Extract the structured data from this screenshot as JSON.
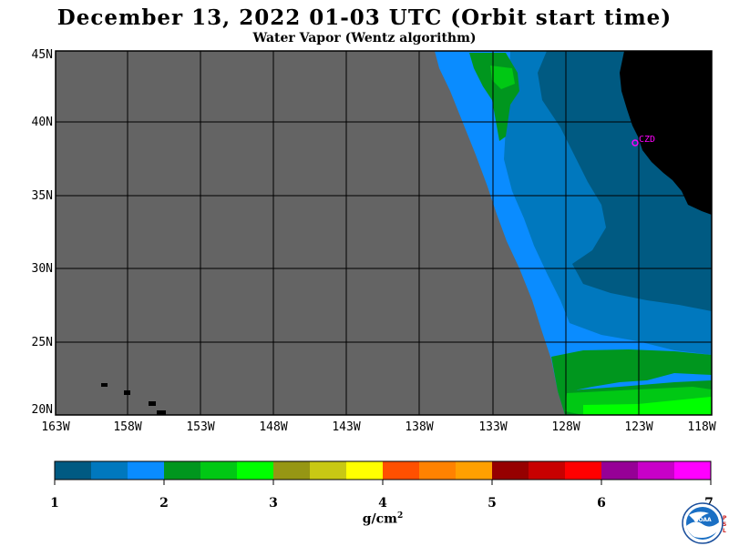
{
  "title": "December 13, 2022  01-03 UTC  (Orbit start time)",
  "subtitle": "Water Vapor (Wentz algorithm)",
  "map": {
    "lat_labels": [
      "45N",
      "40N",
      "35N",
      "30N",
      "25N",
      "20N"
    ],
    "lon_labels": [
      "163W",
      "158W",
      "153W",
      "148W",
      "143W",
      "138W",
      "133W",
      "128W",
      "123W",
      "118W"
    ],
    "station_label": "CZD",
    "colors": {
      "no_data": "#646464",
      "land": "#000000",
      "station": "#ff00ff",
      "grid": "#000000"
    }
  },
  "colorbar": {
    "tick_labels": [
      "1",
      "2",
      "3",
      "4",
      "5",
      "6",
      "7"
    ],
    "unit": "g/cm",
    "unit_exp": "2",
    "colors": [
      "#005a82",
      "#0078be",
      "#0a8cff",
      "#00961e",
      "#00c814",
      "#00ff00",
      "#969614",
      "#c8c814",
      "#ffff00",
      "#ff5000",
      "#ff8200",
      "#ffa000",
      "#960000",
      "#c80000",
      "#ff0000",
      "#960096",
      "#c800c8",
      "#ff00ff"
    ]
  },
  "logo": {
    "name": "NOAA",
    "side_text": "PSL"
  }
}
